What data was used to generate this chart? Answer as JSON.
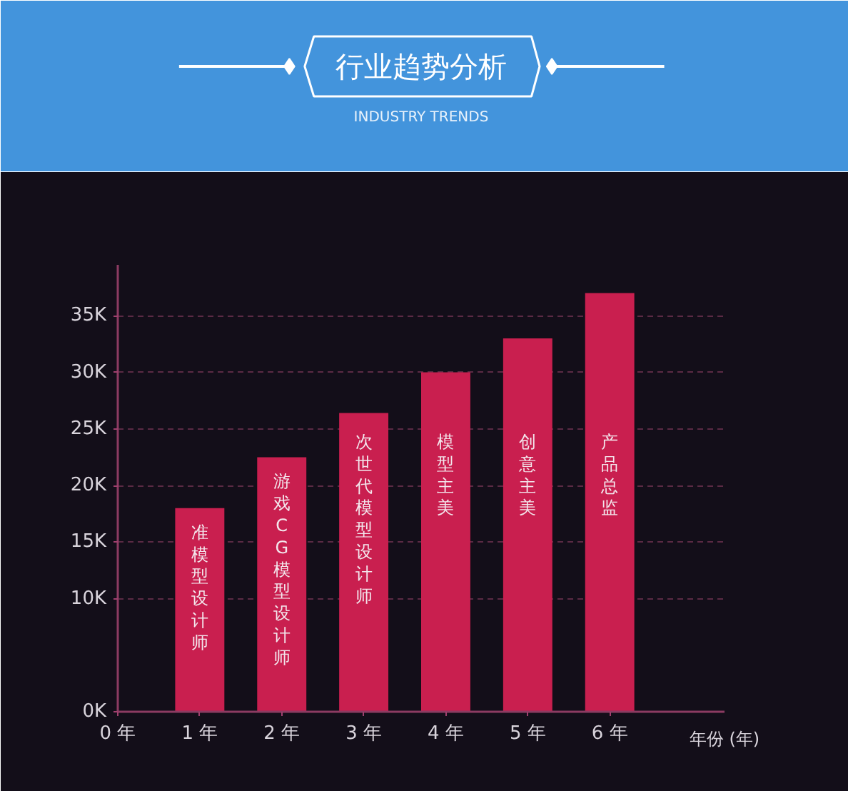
{
  "chart_data": {
    "type": "bar",
    "title": "行业趋势分析",
    "subtitle": "INDUSTRY TRENDS",
    "xlabel": "年份 (年)",
    "categories": [
      "0 年",
      "1 年",
      "2 年",
      "3 年",
      "4 年",
      "5 年",
      "6 年"
    ],
    "values": [
      null,
      18000,
      22500,
      26400,
      30000,
      33000,
      37000
    ],
    "color": "#c91f4f",
    "ylim": [
      0,
      39500
    ],
    "yticks": [
      {
        "value": 0,
        "label": "0K"
      },
      {
        "value": 10000,
        "label": "10K"
      },
      {
        "value": 15000,
        "label": "15K"
      },
      {
        "value": 20000,
        "label": "20K"
      },
      {
        "value": 25000,
        "label": "25K"
      },
      {
        "value": 30000,
        "label": "30K"
      },
      {
        "value": 35000,
        "label": "35K"
      }
    ],
    "grid": "y",
    "annotations": [
      "准模型设计师",
      "游戏CG模型设计师",
      "次世代模型设计师",
      "模型主美",
      "创意主美",
      "产品总监"
    ]
  }
}
